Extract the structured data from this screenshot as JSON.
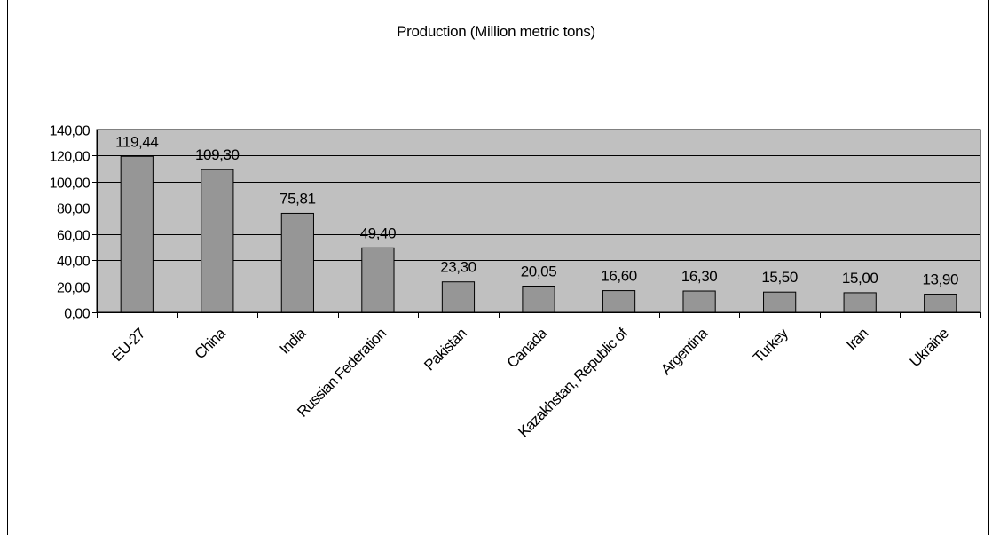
{
  "chart_data": {
    "type": "bar",
    "title": "Production (Million metric tons)",
    "xlabel": "",
    "ylabel": "",
    "categories": [
      "EU-27",
      "China",
      "India",
      "Russian Federation",
      "Pakistan",
      "Canada",
      "Kazakhstan, Republic of",
      "Argentina",
      "Turkey",
      "Iran",
      "Ukraine"
    ],
    "values": [
      119.44,
      109.3,
      75.81,
      49.4,
      23.3,
      20.05,
      16.6,
      16.3,
      15.5,
      15.0,
      13.9
    ],
    "data_labels": [
      "119,44",
      "109,30",
      "75,81",
      "49,40",
      "23,30",
      "20,05",
      "16,60",
      "16,30",
      "15,50",
      "15,00",
      "13,90"
    ],
    "ylim": [
      0,
      140
    ],
    "yticks": [
      0,
      20,
      40,
      60,
      80,
      100,
      120,
      140
    ],
    "ytick_labels": [
      "0,00",
      "20,00",
      "40,00",
      "60,00",
      "80,00",
      "100,00",
      "120,00",
      "140,00"
    ],
    "grid": true,
    "legend": "none",
    "colors": {
      "plot_area": "#c0c0c0",
      "bar": "#969696",
      "outline": "#000000",
      "background": "#ffffff"
    }
  }
}
